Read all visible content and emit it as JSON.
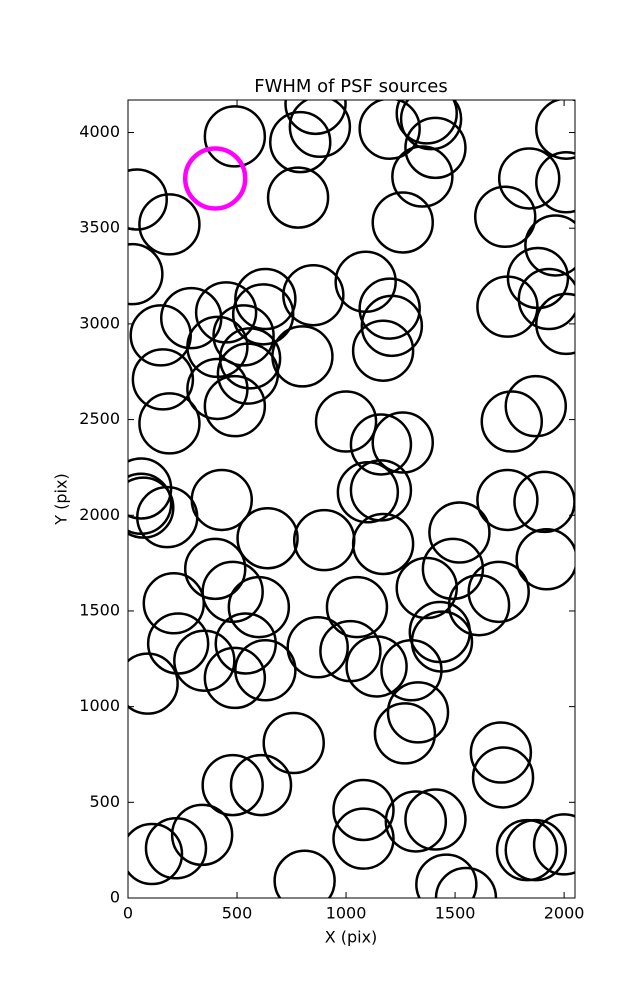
{
  "chart_data": {
    "type": "scatter",
    "title": "FWHM of PSF sources",
    "x_label": "X (pix)",
    "y_label": "Y (pix)",
    "xlim": [
      0,
      2050
    ],
    "ylim": [
      0,
      4170
    ],
    "xticks": [
      0,
      500,
      1000,
      1500,
      2000
    ],
    "yticks": [
      0,
      500,
      1000,
      1500,
      2000,
      2500,
      3000,
      3500,
      4000
    ],
    "series": [
      {
        "color": "#000000",
        "x": [
          40,
          190,
          490,
          780,
          790,
          860,
          880,
          1200,
          1390,
          1370,
          1410,
          1350,
          1260,
          1730,
          1840,
          2010,
          2010,
          1960,
          1880,
          1930,
          1740,
          2010,
          20,
          150,
          290,
          450,
          410,
          530,
          630,
          620,
          850,
          800,
          1090,
          1200,
          1210,
          1170,
          560,
          550,
          410,
          490,
          160,
          190,
          1000,
          1160,
          1260,
          1760,
          1870,
          60,
          60,
          70,
          180,
          430,
          640,
          900,
          1100,
          1160,
          1170,
          1520,
          1490,
          1740,
          1910,
          1920,
          400,
          210,
          480,
          600,
          230,
          350,
          540,
          490,
          630,
          870,
          1020,
          1050,
          1140,
          1300,
          1370,
          1430,
          1440,
          1610,
          1700,
          90,
          1330,
          1270,
          760,
          1710,
          1720,
          480,
          610,
          1080,
          1080,
          1320,
          1410,
          340,
          220,
          110,
          810,
          1460,
          1550,
          1830,
          1870,
          2000
        ],
        "y": [
          3650,
          3520,
          3980,
          3660,
          3950,
          4150,
          4030,
          4020,
          4070,
          4100,
          3920,
          3770,
          3530,
          3560,
          3760,
          4020,
          3740,
          3410,
          3240,
          3130,
          3090,
          3000,
          3260,
          2940,
          3030,
          3060,
          2880,
          2940,
          3130,
          3050,
          3150,
          2830,
          3220,
          3080,
          2990,
          2860,
          2820,
          2740,
          2660,
          2570,
          2710,
          2480,
          2490,
          2370,
          2380,
          2490,
          2570,
          2140,
          2060,
          2040,
          1990,
          2080,
          1880,
          1870,
          2120,
          2130,
          1850,
          1910,
          1720,
          2080,
          2070,
          1770,
          1720,
          1540,
          1600,
          1520,
          1330,
          1240,
          1330,
          1150,
          1190,
          1310,
          1290,
          1520,
          1210,
          1190,
          1620,
          1390,
          1340,
          1530,
          1600,
          1120,
          970,
          860,
          810,
          760,
          630,
          590,
          590,
          460,
          310,
          400,
          410,
          330,
          260,
          230,
          90,
          70,
          0,
          250,
          250,
          280
        ]
      },
      {
        "color": "#ff00ff",
        "x": [
          400
        ],
        "y": [
          3760
        ]
      }
    ]
  }
}
